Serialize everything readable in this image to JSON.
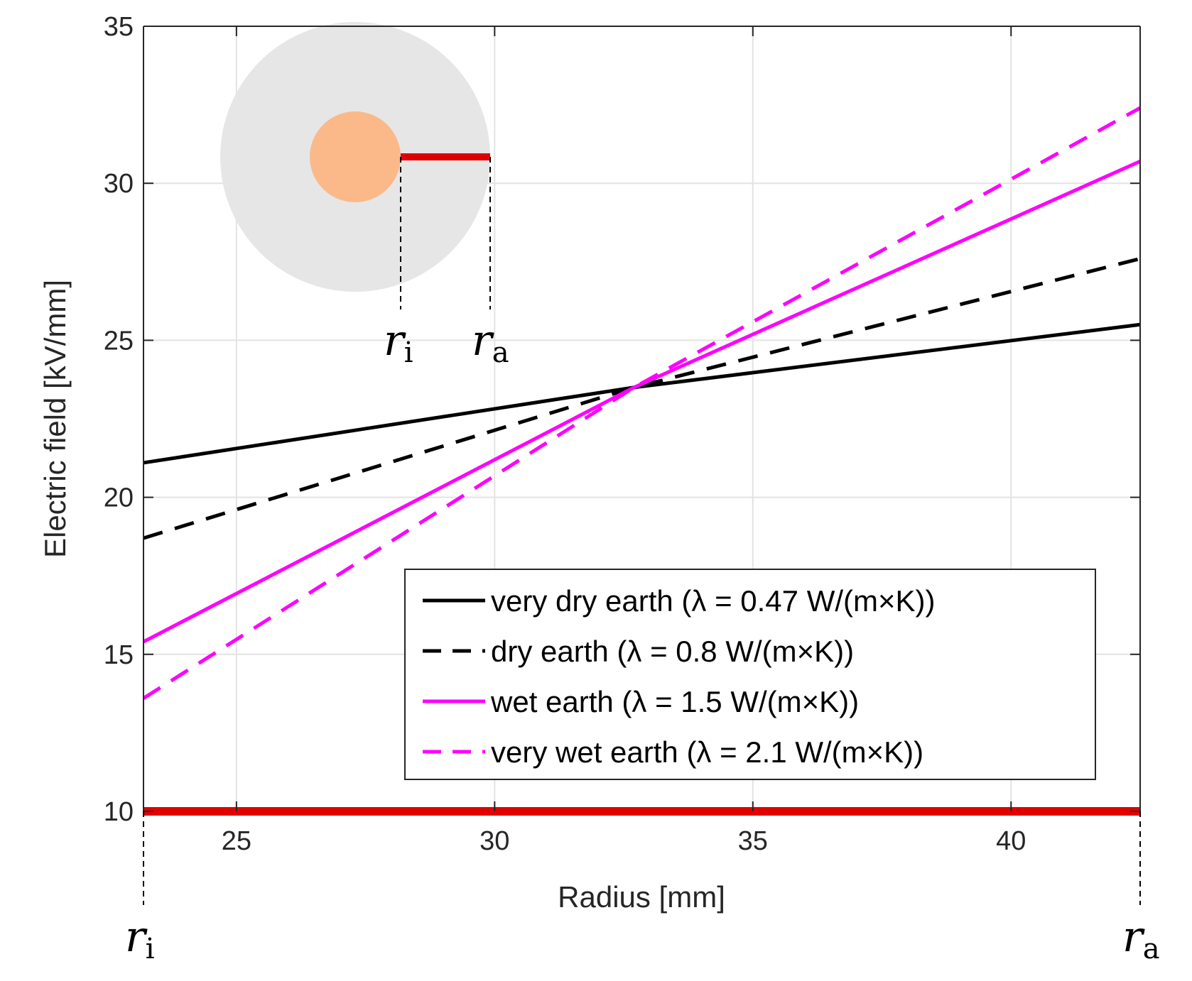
{
  "chart_data": {
    "type": "line",
    "title": "",
    "xlabel": "Radius [mm]",
    "ylabel": "Electric field [kV/mm]",
    "xlim": [
      23.2,
      42.5
    ],
    "ylim": [
      10,
      35
    ],
    "xticks": [
      25,
      30,
      35,
      40
    ],
    "yticks": [
      10,
      15,
      20,
      25,
      30,
      35
    ],
    "grid": true,
    "legend_position": "bottom-right",
    "series": [
      {
        "name": "very dry earth (λ = 0.47 W/(m×K))",
        "color": "#000000",
        "dash": "solid",
        "x": [
          23.2,
          32.7,
          42.5
        ],
        "y": [
          21.1,
          23.5,
          25.5
        ]
      },
      {
        "name": "dry earth (λ = 0.8 W/(m×K))",
        "color": "#000000",
        "dash": "dashed",
        "x": [
          23.2,
          32.7,
          42.5
        ],
        "y": [
          18.7,
          23.5,
          27.6
        ]
      },
      {
        "name": "wet earth (λ = 1.5 W/(m×K))",
        "color": "#ff00ff",
        "dash": "solid",
        "x": [
          23.2,
          32.7,
          42.5
        ],
        "y": [
          15.4,
          23.5,
          30.7
        ]
      },
      {
        "name": "very wet earth (λ = 2.1 W/(m×K))",
        "color": "#ff00ff",
        "dash": "dashed",
        "x": [
          23.2,
          32.7,
          42.5
        ],
        "y": [
          13.6,
          23.5,
          32.4
        ]
      }
    ],
    "baseline": {
      "y": 10,
      "color": "#e00000"
    },
    "annotations": {
      "r_inner": "r",
      "r_inner_sub": "i",
      "r_outer": "r",
      "r_outer_sub": "a"
    },
    "inset": {
      "outer_color": "#e6e6e6",
      "conductor_color": "#fbb98a",
      "radius_line_color": "#e00000"
    }
  }
}
